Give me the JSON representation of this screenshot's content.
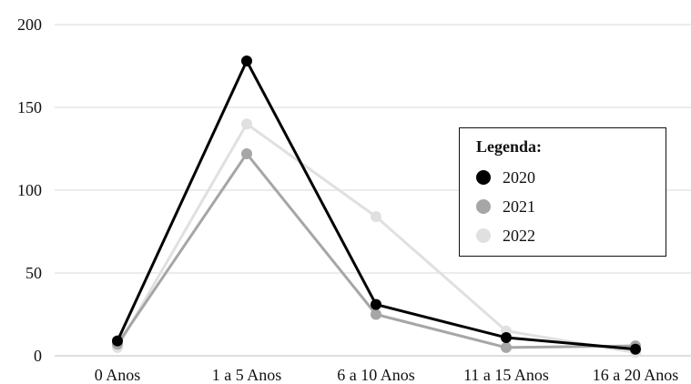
{
  "chart_data": {
    "type": "line",
    "categories": [
      "0 Anos",
      "1 a 5 Anos",
      "6 a 10 Anos",
      "11 a 15 Anos",
      "16 a 20 Anos"
    ],
    "ylim": [
      0,
      200
    ],
    "yticks": [
      0,
      50,
      100,
      150,
      200
    ],
    "grid": true,
    "legend_position": "right",
    "legend_title": "Legenda:",
    "series": [
      {
        "name": "2020",
        "color": "#000000",
        "values": [
          9,
          178,
          31,
          11,
          4
        ]
      },
      {
        "name": "2021",
        "color": "#a6a6a6",
        "values": [
          7,
          122,
          25,
          5,
          6
        ]
      },
      {
        "name": "2022",
        "color": "#e0e0e0",
        "values": [
          5,
          140,
          84,
          15,
          2
        ]
      }
    ]
  }
}
